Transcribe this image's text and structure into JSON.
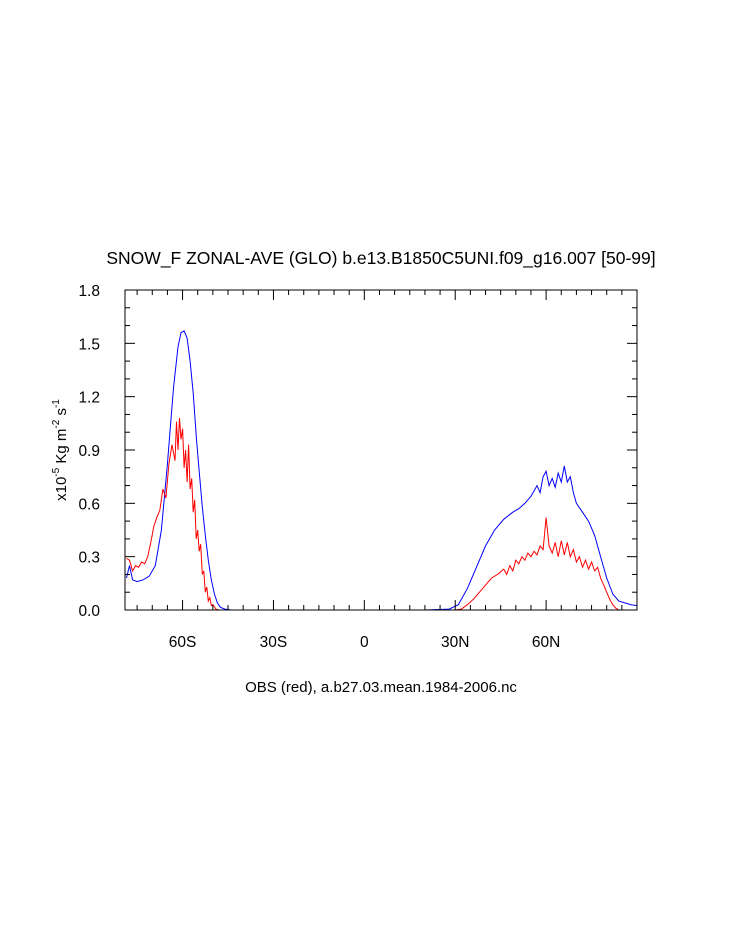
{
  "chart_data": {
    "type": "line",
    "title": "SNOW_F ZONAL-AVE (GLO) b.e13.B1850C5UNI.f09_g16.007 [50-99]",
    "xlabel": "OBS (red), a.b27.03.mean.1984-2006.nc",
    "ylabel": {
      "prefix": "x10",
      "exp": "-5",
      "unit_main": " Kg m",
      "unit_exp1": "-2",
      "unit_s": " s",
      "unit_exp2": "-1"
    },
    "xlim": [
      -79,
      90
    ],
    "ylim": [
      0,
      1.8
    ],
    "x_ticks": [
      {
        "value": -60,
        "label": "60S"
      },
      {
        "value": -30,
        "label": "30S"
      },
      {
        "value": 0,
        "label": "0"
      },
      {
        "value": 30,
        "label": "30N"
      },
      {
        "value": 60,
        "label": "60N"
      }
    ],
    "y_ticks": [
      {
        "value": 0.0,
        "label": "0.0"
      },
      {
        "value": 0.3,
        "label": "0.3"
      },
      {
        "value": 0.6,
        "label": "0.6"
      },
      {
        "value": 0.9,
        "label": "0.9"
      },
      {
        "value": 1.2,
        "label": "1.2"
      },
      {
        "value": 1.5,
        "label": "1.5"
      },
      {
        "value": 1.8,
        "label": "1.8"
      }
    ],
    "series": [
      {
        "color": "#0000ff",
        "points": [
          [
            -78.5,
            0.18
          ],
          [
            -77.5,
            0.25
          ],
          [
            -76.5,
            0.17
          ],
          [
            -75,
            0.16
          ],
          [
            -73,
            0.17
          ],
          [
            -71,
            0.19
          ],
          [
            -69,
            0.25
          ],
          [
            -67,
            0.45
          ],
          [
            -65,
            0.82
          ],
          [
            -63,
            1.25
          ],
          [
            -61.5,
            1.48
          ],
          [
            -60.5,
            1.56
          ],
          [
            -59.5,
            1.57
          ],
          [
            -58.5,
            1.53
          ],
          [
            -57.5,
            1.4
          ],
          [
            -56.5,
            1.22
          ],
          [
            -55.5,
            0.98
          ],
          [
            -54.5,
            0.78
          ],
          [
            -53.5,
            0.58
          ],
          [
            -52.5,
            0.42
          ],
          [
            -51.5,
            0.28
          ],
          [
            -50.5,
            0.17
          ],
          [
            -49.5,
            0.09
          ],
          [
            -48.5,
            0.04
          ],
          [
            -47.5,
            0.015
          ],
          [
            -46,
            0.005
          ],
          [
            -44,
            0.0
          ],
          [
            -30,
            0.0
          ],
          [
            0,
            0.0
          ],
          [
            20,
            0.0
          ],
          [
            28,
            0.005
          ],
          [
            31,
            0.03
          ],
          [
            34,
            0.12
          ],
          [
            37,
            0.24
          ],
          [
            40,
            0.36
          ],
          [
            43,
            0.45
          ],
          [
            46,
            0.51
          ],
          [
            49,
            0.55
          ],
          [
            51,
            0.57
          ],
          [
            53,
            0.6
          ],
          [
            55,
            0.64
          ],
          [
            57,
            0.7
          ],
          [
            58,
            0.66
          ],
          [
            59,
            0.75
          ],
          [
            60,
            0.78
          ],
          [
            61,
            0.7
          ],
          [
            62,
            0.74
          ],
          [
            63,
            0.69
          ],
          [
            64,
            0.77
          ],
          [
            65,
            0.72
          ],
          [
            66,
            0.81
          ],
          [
            67,
            0.72
          ],
          [
            68,
            0.75
          ],
          [
            69,
            0.66
          ],
          [
            70,
            0.6
          ],
          [
            72,
            0.55
          ],
          [
            74,
            0.5
          ],
          [
            76,
            0.42
          ],
          [
            78,
            0.3
          ],
          [
            80,
            0.18
          ],
          [
            82,
            0.09
          ],
          [
            84,
            0.05
          ],
          [
            86,
            0.04
          ],
          [
            88,
            0.03
          ],
          [
            90,
            0.025
          ]
        ]
      },
      {
        "color": "#ff0000",
        "points": [
          [
            -78.5,
            0.29
          ],
          [
            -77.5,
            0.28
          ],
          [
            -76.5,
            0.22
          ],
          [
            -75.5,
            0.25
          ],
          [
            -74.5,
            0.24
          ],
          [
            -73.5,
            0.27
          ],
          [
            -72.5,
            0.26
          ],
          [
            -71.5,
            0.3
          ],
          [
            -70.5,
            0.38
          ],
          [
            -69.5,
            0.47
          ],
          [
            -68.5,
            0.52
          ],
          [
            -67.5,
            0.56
          ],
          [
            -66.5,
            0.68
          ],
          [
            -65.5,
            0.63
          ],
          [
            -64.5,
            0.82
          ],
          [
            -63.5,
            0.93
          ],
          [
            -62.5,
            0.84
          ],
          [
            -62,
            1.06
          ],
          [
            -61.5,
            0.9
          ],
          [
            -61,
            1.08
          ],
          [
            -60.5,
            0.96
          ],
          [
            -60,
            1.02
          ],
          [
            -59.5,
            0.8
          ],
          [
            -59,
            0.9
          ],
          [
            -58.5,
            0.72
          ],
          [
            -58,
            0.93
          ],
          [
            -57.5,
            0.68
          ],
          [
            -57,
            0.74
          ],
          [
            -56.5,
            0.55
          ],
          [
            -56,
            0.62
          ],
          [
            -55.5,
            0.4
          ],
          [
            -55,
            0.45
          ],
          [
            -54.5,
            0.33
          ],
          [
            -54,
            0.37
          ],
          [
            -53.5,
            0.2
          ],
          [
            -53,
            0.22
          ],
          [
            -52.5,
            0.1
          ],
          [
            -52,
            0.13
          ],
          [
            -51.5,
            0.05
          ],
          [
            -51,
            0.07
          ],
          [
            -50.5,
            0.025
          ],
          [
            -50,
            0.03
          ],
          [
            -49,
            0.005
          ],
          [
            -48,
            0.0
          ],
          [
            0,
            0.0
          ],
          [
            30,
            0.0
          ],
          [
            32,
            0.005
          ],
          [
            34,
            0.03
          ],
          [
            36,
            0.06
          ],
          [
            38,
            0.1
          ],
          [
            40,
            0.14
          ],
          [
            42,
            0.18
          ],
          [
            44,
            0.2
          ],
          [
            46,
            0.23
          ],
          [
            47,
            0.2
          ],
          [
            48,
            0.25
          ],
          [
            49,
            0.22
          ],
          [
            50,
            0.28
          ],
          [
            51,
            0.26
          ],
          [
            52,
            0.3
          ],
          [
            53,
            0.28
          ],
          [
            54,
            0.32
          ],
          [
            55,
            0.3
          ],
          [
            56,
            0.33
          ],
          [
            57,
            0.31
          ],
          [
            58,
            0.36
          ],
          [
            59,
            0.34
          ],
          [
            60,
            0.52
          ],
          [
            61,
            0.36
          ],
          [
            62,
            0.32
          ],
          [
            63,
            0.38
          ],
          [
            64,
            0.3
          ],
          [
            65,
            0.39
          ],
          [
            66,
            0.31
          ],
          [
            67,
            0.38
          ],
          [
            68,
            0.3
          ],
          [
            69,
            0.34
          ],
          [
            70,
            0.27
          ],
          [
            71,
            0.3
          ],
          [
            72,
            0.24
          ],
          [
            73,
            0.28
          ],
          [
            74,
            0.23
          ],
          [
            75,
            0.27
          ],
          [
            76,
            0.22
          ],
          [
            77,
            0.24
          ],
          [
            78,
            0.18
          ],
          [
            79,
            0.14
          ],
          [
            80,
            0.1
          ],
          [
            81,
            0.06
          ],
          [
            82,
            0.03
          ],
          [
            83,
            0.01
          ],
          [
            84,
            0.0
          ]
        ]
      }
    ]
  }
}
